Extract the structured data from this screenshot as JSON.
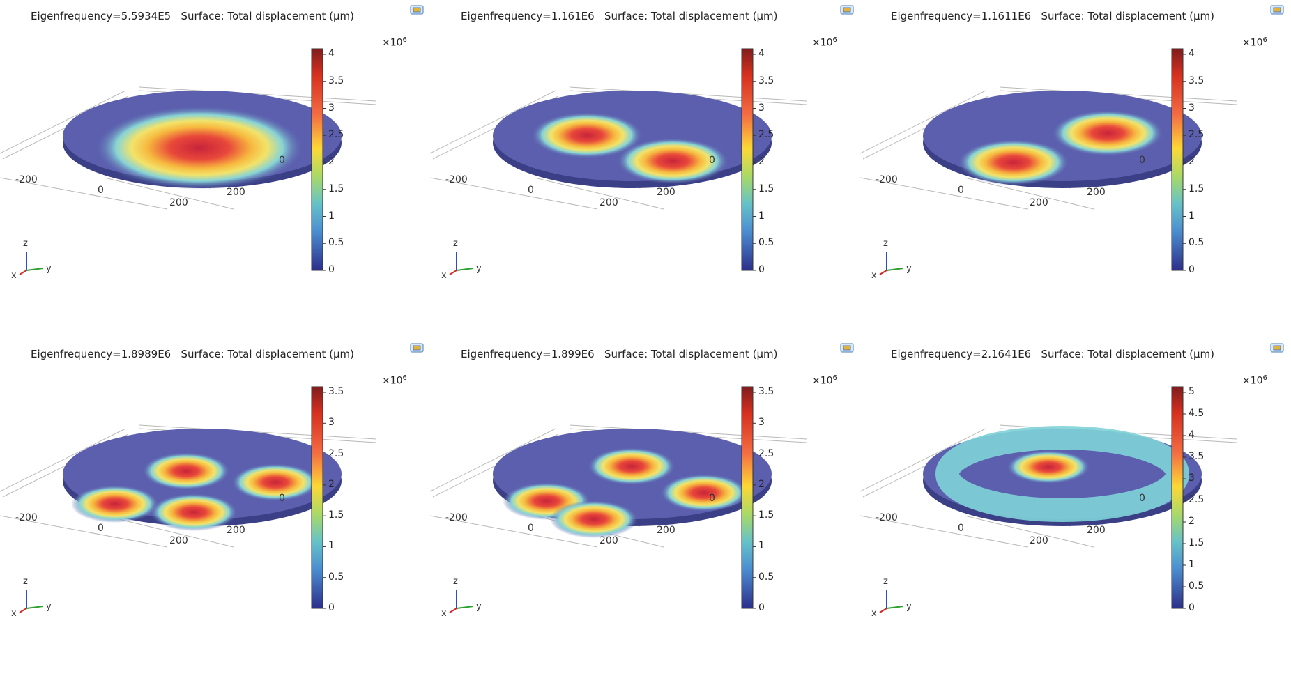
{
  "panels": [
    {
      "title": "Eigenfrequency=5.5934E5   Surface: Total displacement (µm)",
      "mode": "fundamental",
      "colorbar": {
        "exponent_label": "×10",
        "exponent": "6",
        "ticks": [
          "4",
          "3.5",
          "3",
          "2.5",
          "2",
          "1.5",
          "1",
          "0.5",
          "0"
        ]
      },
      "axis_labels": [
        "-200",
        "0",
        "200",
        "200",
        "0"
      ],
      "triad": {
        "z": "z",
        "x": "x",
        "y": "y"
      }
    },
    {
      "title": "Eigenfrequency=1.161E6   Surface: Total displacement (µm)",
      "mode": "dipole",
      "colorbar": {
        "exponent_label": "×10",
        "exponent": "6",
        "ticks": [
          "4",
          "3.5",
          "3",
          "2.5",
          "2",
          "1.5",
          "1",
          "0.5",
          "0"
        ]
      },
      "axis_labels": [
        "-200",
        "0",
        "200",
        "200",
        "0"
      ],
      "triad": {
        "z": "z",
        "x": "x",
        "y": "y"
      }
    },
    {
      "title": "Eigenfrequency=1.1611E6   Surface: Total displacement (µm)",
      "mode": "dipole-rotated",
      "colorbar": {
        "exponent_label": "×10",
        "exponent": "6",
        "ticks": [
          "4",
          "3.5",
          "3",
          "2.5",
          "2",
          "1.5",
          "1",
          "0.5",
          "0"
        ]
      },
      "axis_labels": [
        "-200",
        "0",
        "200",
        "200",
        "0"
      ],
      "triad": {
        "z": "z",
        "x": "x",
        "y": "y"
      }
    },
    {
      "title": "Eigenfrequency=1.8989E6   Surface: Total displacement (µm)",
      "mode": "quadrupole",
      "colorbar": {
        "exponent_label": "×10",
        "exponent": "6",
        "ticks": [
          "3.5",
          "3",
          "2.5",
          "2",
          "1.5",
          "1",
          "0.5",
          "0"
        ]
      },
      "axis_labels": [
        "-200",
        "0",
        "200",
        "200",
        "0"
      ],
      "triad": {
        "z": "z",
        "x": "x",
        "y": "y"
      }
    },
    {
      "title": "Eigenfrequency=1.899E6   Surface: Total displacement (µm)",
      "mode": "quadrupole-rotated",
      "colorbar": {
        "exponent_label": "×10",
        "exponent": "6",
        "ticks": [
          "3.5",
          "3",
          "2.5",
          "2",
          "1.5",
          "1",
          "0.5",
          "0"
        ]
      },
      "axis_labels": [
        "-200",
        "0",
        "200",
        "200",
        "0"
      ],
      "triad": {
        "z": "z",
        "x": "x",
        "y": "y"
      }
    },
    {
      "title": "Eigenfrequency=2.1641E6   Surface: Total displacement (µm)",
      "mode": "radial",
      "colorbar": {
        "exponent_label": "×10",
        "exponent": "6",
        "ticks": [
          "5",
          "4.5",
          "4",
          "3.5",
          "3",
          "2.5",
          "2",
          "1.5",
          "1",
          "0.5",
          "0"
        ]
      },
      "axis_labels": [
        "-200",
        "0",
        "200",
        "200",
        "0"
      ],
      "triad": {
        "z": "z",
        "x": "x",
        "y": "y"
      }
    }
  ],
  "colors": {
    "disk_base": "#5b5fae",
    "disk_edge": "#3b3f86",
    "peak": "#d73027",
    "ring_mid": "#f3d94a",
    "ring_low": "#7fd3d8",
    "triad_x": "#d62728",
    "triad_y": "#2ca02c",
    "triad_z": "#2b4fbf"
  }
}
